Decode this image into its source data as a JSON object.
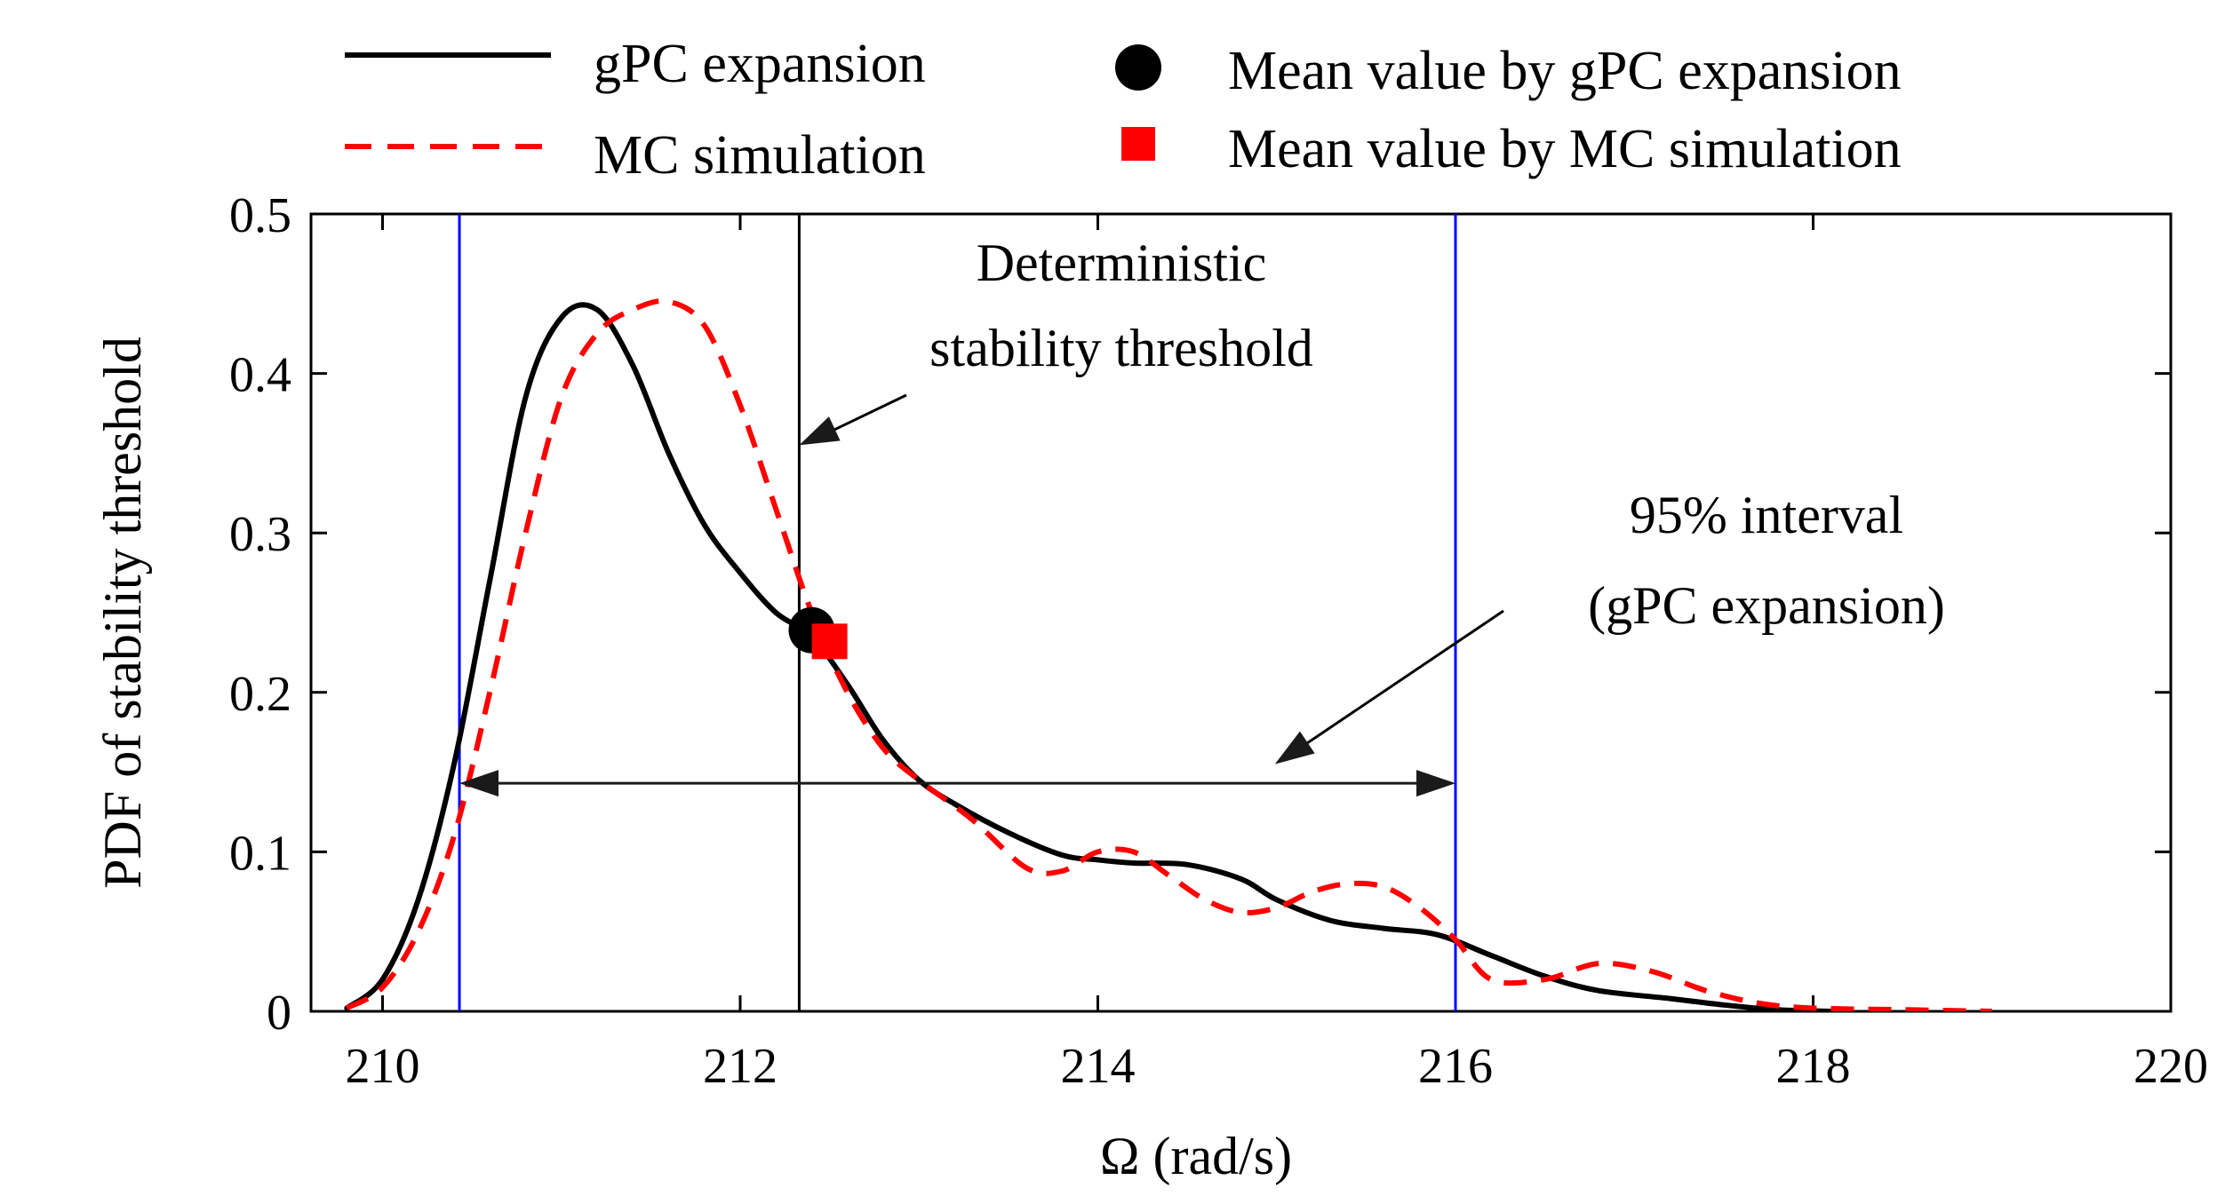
{
  "chart_data": {
    "type": "line",
    "xlabel": "Ω (rad/s)",
    "ylabel": "PDF of stability threshold",
    "xlim": [
      209.6,
      220
    ],
    "ylim": [
      0,
      0.5
    ],
    "xticks": [
      210,
      212,
      214,
      216,
      218,
      220
    ],
    "xtick_labels": [
      "210",
      "212",
      "214",
      "216",
      "218",
      "220"
    ],
    "yticks": [
      0,
      0.1,
      0.2,
      0.3,
      0.4,
      0.5
    ],
    "ytick_labels": [
      "0",
      "0.1",
      "0.2",
      "0.3",
      "0.4",
      "0.5"
    ],
    "grid": false,
    "legend_position": "top, outside plot, two columns",
    "legend": {
      "gpc_line": "gPC expansion",
      "mc_line": "MC simulation",
      "gpc_mean": "Mean value by gPC expansion",
      "mc_mean": "Mean value by MC simulation"
    },
    "series": [
      {
        "name": "gPC expansion",
        "style": "solid",
        "color": "#000000",
        "x": [
          209.8,
          210.0,
          210.2,
          210.4,
          210.6,
          210.8,
          211.0,
          211.2,
          211.4,
          211.6,
          211.8,
          212.0,
          212.2,
          212.4,
          212.6,
          212.8,
          213.0,
          213.2,
          213.5,
          213.8,
          214.0,
          214.2,
          214.5,
          214.8,
          215.0,
          215.3,
          215.6,
          215.9,
          216.2,
          216.5,
          216.8,
          217.2,
          217.5,
          217.8,
          218.1
        ],
        "y": [
          0.002,
          0.02,
          0.07,
          0.155,
          0.27,
          0.385,
          0.435,
          0.44,
          0.405,
          0.35,
          0.305,
          0.275,
          0.25,
          0.235,
          0.205,
          0.17,
          0.145,
          0.13,
          0.112,
          0.098,
          0.095,
          0.093,
          0.092,
          0.083,
          0.07,
          0.057,
          0.052,
          0.048,
          0.035,
          0.022,
          0.013,
          0.008,
          0.004,
          0.001,
          0.0
        ]
      },
      {
        "name": "MC simulation",
        "style": "dashed",
        "color": "#ff0000",
        "x": [
          209.8,
          210.0,
          210.2,
          210.4,
          210.6,
          210.8,
          211.0,
          211.2,
          211.4,
          211.6,
          211.8,
          212.0,
          212.2,
          212.4,
          212.6,
          212.8,
          213.0,
          213.3,
          213.6,
          213.8,
          214.0,
          214.2,
          214.4,
          214.6,
          214.8,
          215.0,
          215.2,
          215.4,
          215.6,
          215.8,
          216.0,
          216.2,
          216.5,
          216.8,
          217.1,
          217.4,
          217.7,
          218.0,
          218.5,
          219.0
        ],
        "y": [
          0.002,
          0.015,
          0.05,
          0.11,
          0.2,
          0.3,
          0.385,
          0.425,
          0.44,
          0.445,
          0.43,
          0.38,
          0.315,
          0.25,
          0.2,
          0.165,
          0.145,
          0.12,
          0.09,
          0.088,
          0.1,
          0.1,
          0.085,
          0.07,
          0.062,
          0.065,
          0.075,
          0.08,
          0.078,
          0.065,
          0.045,
          0.02,
          0.02,
          0.03,
          0.025,
          0.013,
          0.005,
          0.002,
          0.001,
          0.0
        ]
      }
    ],
    "markers": [
      {
        "name": "Mean value by gPC expansion",
        "shape": "circle",
        "color": "#000000",
        "x": 212.4,
        "y": 0.239
      },
      {
        "name": "Mean value by MC simulation",
        "shape": "square",
        "color": "#ff0000",
        "x": 212.5,
        "y": 0.232
      }
    ],
    "vertical_lines": [
      {
        "name": "deterministic-threshold",
        "x": 212.33,
        "color": "#000000"
      },
      {
        "name": "interval-lower-bound",
        "x": 210.43,
        "color": "#0000ff"
      },
      {
        "name": "interval-upper-bound",
        "x": 216.0,
        "color": "#0000ff"
      }
    ],
    "interval_arrow": {
      "x_start": 210.43,
      "x_end": 216.0,
      "y": 0.143
    },
    "annotations": {
      "deterministic_line1": "Deterministic",
      "deterministic_line2": "stability threshold",
      "deterministic_arrow_target": {
        "x": 212.33,
        "y": 0.355
      },
      "interval_line1": "95% interval",
      "interval_line2": "(gPC expansion)",
      "interval_arrow_target": {
        "x": 215.0,
        "y": 0.145
      }
    }
  }
}
